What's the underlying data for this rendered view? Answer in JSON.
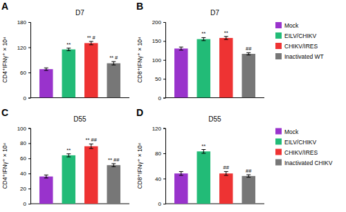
{
  "chart_data": [
    {
      "type": "bar",
      "panel_label": "A",
      "title": "D7",
      "ylabel": "CD4⁺IFNγ⁺ × 10⁴",
      "categories": [
        null,
        null,
        null,
        null
      ],
      "values": [
        68,
        115,
        130,
        82
      ],
      "errors": [
        3,
        3,
        4,
        4
      ],
      "annotations": [
        null,
        "**",
        "** #",
        "** #"
      ],
      "colors": [
        "#9933cc",
        "#22bb77",
        "#ee3333",
        "#777777"
      ],
      "ylim": [
        0,
        180
      ],
      "yticks": [
        0,
        60,
        120,
        180
      ],
      "tick_labels": "y",
      "grid": false
    },
    {
      "type": "bar",
      "panel_label": "B",
      "title": "D7",
      "ylabel": "CD8⁺IFNγ⁺ × 10⁴",
      "categories": [
        "Mock",
        "EILV/CHIKV",
        "CHIKV/IRES",
        "Inactivated WT"
      ],
      "values": [
        130,
        155,
        158,
        116
      ],
      "errors": [
        4,
        4,
        4,
        3
      ],
      "annotations": [
        null,
        "**",
        "**",
        "##"
      ],
      "colors": [
        "#9933cc",
        "#22bb77",
        "#ee3333",
        "#777777"
      ],
      "ylim": [
        0,
        200
      ],
      "yticks": [
        0,
        50,
        100,
        150,
        200
      ],
      "tick_labels": "y",
      "grid": false,
      "legend": "right"
    },
    {
      "type": "bar",
      "panel_label": "C",
      "title": "D55",
      "ylabel": "CD4⁺IFNγ⁺ × 10⁴",
      "categories": [
        null,
        null,
        null,
        null
      ],
      "values": [
        36,
        64,
        76,
        51
      ],
      "errors": [
        2,
        2,
        3,
        2
      ],
      "annotations": [
        null,
        "**",
        "** ##",
        "** ##"
      ],
      "colors": [
        "#9933cc",
        "#22bb77",
        "#ee3333",
        "#777777"
      ],
      "ylim": [
        0,
        100
      ],
      "yticks": [
        0,
        20,
        40,
        60,
        80,
        100
      ],
      "tick_labels": "y",
      "grid": false
    },
    {
      "type": "bar",
      "panel_label": "D",
      "title": "D55",
      "ylabel": "CD8⁺IFNγ⁺ × 10⁴",
      "categories": [
        "Mock",
        "EILV/CHIKV",
        "CHIKV/IRES",
        "Inactivated CHIKV"
      ],
      "values": [
        48,
        83,
        48,
        44
      ],
      "errors": [
        3,
        3,
        3,
        2
      ],
      "annotations": [
        null,
        "**",
        "##",
        "##"
      ],
      "colors": [
        "#9933cc",
        "#22bb77",
        "#ee3333",
        "#777777"
      ],
      "ylim": [
        0,
        120
      ],
      "yticks": [
        0,
        40,
        80,
        120
      ],
      "tick_labels": "y",
      "grid": false,
      "legend": "right"
    }
  ]
}
